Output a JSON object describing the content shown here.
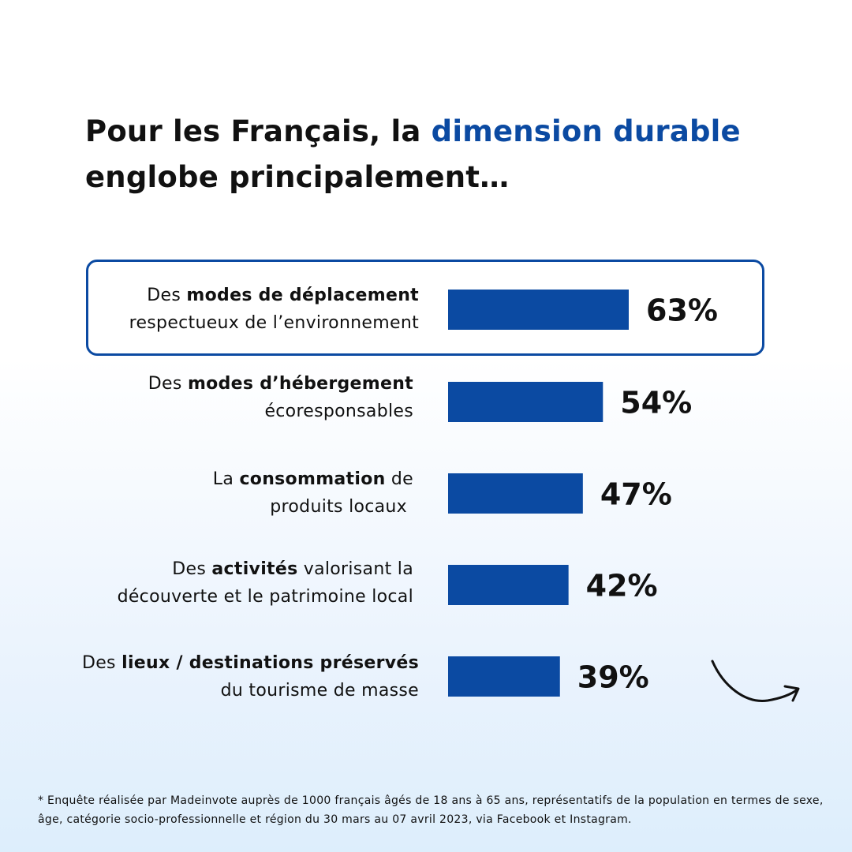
{
  "title": {
    "part1": "Pour les Français, la ",
    "accent": "dimension durable",
    "part2": "englobe principalement…"
  },
  "colors": {
    "bar": "#0b4aa2",
    "accent": "#0b4aa2",
    "text": "#111111"
  },
  "chart_data": {
    "type": "bar",
    "orientation": "horizontal",
    "categories": [
      "Des modes de déplacement respectueux de l’environnement",
      "Des modes d’hébergement écoresponsables",
      "La consommation de produits locaux",
      "Des activités valorisant la découverte et le patrimoine local",
      "Des lieux / destinations préservés du tourisme de masse"
    ],
    "values": [
      63,
      54,
      47,
      42,
      39
    ],
    "value_labels": [
      "63%",
      "54%",
      "47%",
      "42%",
      "39%"
    ],
    "highlighted_category": 0,
    "grid": false,
    "axes_visible": false
  },
  "labels": [
    {
      "pre": "Des ",
      "bold": "modes de déplacement",
      "post": "",
      "line2": "respectueux de l’environnement"
    },
    {
      "pre": "Des ",
      "bold": "modes d’hébergement",
      "post": "",
      "line2": "écoresponsables"
    },
    {
      "pre": "La ",
      "bold": "consommation",
      "post": " de",
      "line2": "produits locaux"
    },
    {
      "pre": "Des ",
      "bold": "activités",
      "post": " valorisant la",
      "line2": "découverte et le patrimoine local"
    },
    {
      "pre": "Des ",
      "bold": "lieux / destinations préservés",
      "post": "",
      "line2": "du tourisme de masse"
    }
  ],
  "footnote": "* Enquête réalisée par Madeinvote auprès de 1000 français âgés de 18 ans à 65 ans, représentatifs de la population en termes de sexe, âge, catégorie socio-professionnelle et région du 30 mars au 07 avril 2023, via Facebook et Instagram.",
  "icons": {
    "arrow": "curved-arrow-icon"
  }
}
